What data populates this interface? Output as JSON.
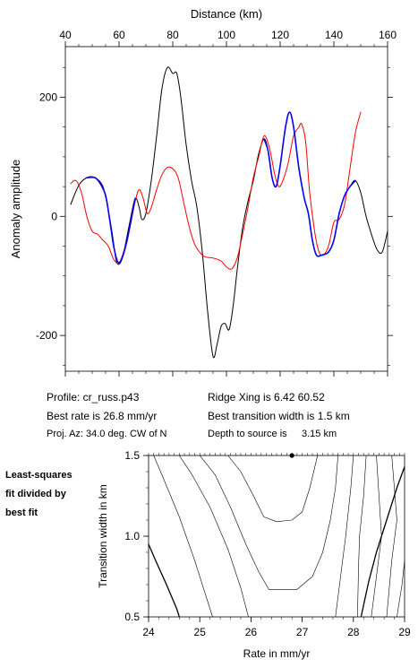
{
  "chart_data": [
    {
      "type": "line",
      "xlabel": "Distance (km)",
      "ylabel": "Anomaly amplitude",
      "xlim": [
        40,
        160
      ],
      "ylim": [
        -260,
        285
      ],
      "xticks": [
        40,
        60,
        80,
        100,
        120,
        140,
        160
      ],
      "yticks": [
        200,
        0,
        -200
      ],
      "series": [
        {
          "color": "#000000",
          "points": [
            [
              42,
              20
            ],
            [
              45,
              52
            ],
            [
              48,
              65
            ],
            [
              51,
              65
            ],
            [
              54,
              50
            ],
            [
              56,
              10
            ],
            [
              57.5,
              -30
            ],
            [
              59,
              -75
            ],
            [
              60.5,
              -78
            ],
            [
              62,
              -55
            ],
            [
              64,
              -10
            ],
            [
              66,
              30
            ],
            [
              67.5,
              15
            ],
            [
              68.5,
              -5
            ],
            [
              70,
              5
            ],
            [
              72,
              60
            ],
            [
              74,
              135
            ],
            [
              76,
              215
            ],
            [
              78,
              250
            ],
            [
              80,
              240
            ],
            [
              81.5,
              240
            ],
            [
              83,
              200
            ],
            [
              85,
              120
            ],
            [
              87,
              60
            ],
            [
              89,
              15
            ],
            [
              91,
              -60
            ],
            [
              93,
              -160
            ],
            [
              95,
              -235
            ],
            [
              96.5,
              -215
            ],
            [
              98,
              -185
            ],
            [
              99.5,
              -180
            ],
            [
              101,
              -190
            ],
            [
              102.5,
              -150
            ],
            [
              104,
              -90
            ],
            [
              106,
              -20
            ],
            [
              108,
              25
            ],
            [
              110,
              60
            ],
            [
              112,
              105
            ],
            [
              114,
              130
            ],
            [
              115.5,
              110
            ],
            [
              117,
              65
            ],
            [
              118.5,
              50
            ],
            [
              120,
              85
            ],
            [
              122,
              150
            ],
            [
              123.5,
              175
            ],
            [
              125,
              150
            ],
            [
              127,
              80
            ],
            [
              129,
              30
            ],
            [
              130.5,
              5
            ],
            [
              132,
              -40
            ],
            [
              133.5,
              -65
            ],
            [
              135.5,
              -65
            ],
            [
              138,
              -60
            ],
            [
              140,
              -40
            ],
            [
              142,
              5
            ],
            [
              144,
              35
            ],
            [
              146,
              50
            ],
            [
              148,
              60
            ],
            [
              150,
              40
            ],
            [
              152,
              0
            ],
            [
              154,
              -30
            ],
            [
              156,
              -55
            ],
            [
              158,
              -60
            ],
            [
              160,
              -25
            ]
          ]
        },
        {
          "color": "#ff0000",
          "points": [
            [
              42,
              55
            ],
            [
              44,
              60
            ],
            [
              46,
              40
            ],
            [
              48,
              0
            ],
            [
              50,
              -25
            ],
            [
              52,
              -30
            ],
            [
              54,
              -40
            ],
            [
              56,
              -50
            ],
            [
              58,
              -72
            ],
            [
              60,
              -78
            ],
            [
              62,
              -55
            ],
            [
              64,
              -20
            ],
            [
              66,
              25
            ],
            [
              67.5,
              45
            ],
            [
              69,
              30
            ],
            [
              70.5,
              5
            ],
            [
              72,
              15
            ],
            [
              74,
              45
            ],
            [
              76,
              70
            ],
            [
              78,
              82
            ],
            [
              80,
              80
            ],
            [
              82,
              65
            ],
            [
              84,
              25
            ],
            [
              86,
              -15
            ],
            [
              88,
              -45
            ],
            [
              90,
              -60
            ],
            [
              92,
              -68
            ],
            [
              95,
              -70
            ],
            [
              98,
              -75
            ],
            [
              100,
              -85
            ],
            [
              102,
              -88
            ],
            [
              104,
              -70
            ],
            [
              106,
              -30
            ],
            [
              108,
              15
            ],
            [
              110,
              65
            ],
            [
              112,
              100
            ],
            [
              114,
              135
            ],
            [
              116,
              115
            ],
            [
              118,
              70
            ],
            [
              119.5,
              50
            ],
            [
              121,
              60
            ],
            [
              123,
              90
            ],
            [
              125,
              135
            ],
            [
              127,
              150
            ],
            [
              128,
              155
            ],
            [
              129.5,
              125
            ],
            [
              131,
              40
            ],
            [
              133,
              -30
            ],
            [
              134.5,
              -60
            ],
            [
              136,
              -65
            ],
            [
              138,
              -50
            ],
            [
              140,
              -10
            ],
            [
              142,
              -5
            ],
            [
              144,
              20
            ],
            [
              146,
              80
            ],
            [
              148,
              140
            ],
            [
              150,
              175
            ]
          ]
        },
        {
          "color": "#0000ff",
          "points": [
            [
              48,
              65
            ],
            [
              51,
              65
            ],
            [
              53,
              55
            ],
            [
              55,
              35
            ],
            [
              56.5,
              -5
            ],
            [
              58,
              -50
            ],
            [
              59.5,
              -76
            ],
            [
              61,
              -72
            ],
            [
              63,
              -40
            ],
            [
              64.5,
              -5
            ],
            [
              66,
              30
            ]
          ]
        },
        {
          "color": "#0000ff",
          "points": [
            [
              114,
              130
            ],
            [
              115.5,
              110
            ],
            [
              117,
              65
            ],
            [
              118.5,
              50
            ],
            [
              120,
              85
            ],
            [
              122,
              150
            ],
            [
              123.5,
              175
            ],
            [
              125,
              150
            ],
            [
              127,
              80
            ],
            [
              129,
              30
            ],
            [
              130.5,
              5
            ],
            [
              132,
              -40
            ],
            [
              133.5,
              -65
            ],
            [
              135.5,
              -65
            ],
            [
              138,
              -60
            ],
            [
              140,
              -40
            ],
            [
              142,
              5
            ],
            [
              144,
              35
            ],
            [
              146,
              50
            ],
            [
              148,
              60
            ]
          ]
        }
      ]
    },
    {
      "type": "line",
      "xlabel": "Rate in mm/yr",
      "ylabel": "Transition width in km",
      "xlim": [
        24,
        29
      ],
      "ylim": [
        0.5,
        1.5
      ],
      "xticks": [
        "24",
        "25",
        "26",
        "27",
        "28",
        "29"
      ],
      "yticks": [
        "1.5",
        "1.0",
        "0.5"
      ],
      "best_fit_marker": [
        26.8,
        1.5
      ],
      "contours": [
        {
          "weight": "thick",
          "points": [
            [
              24,
              0.95
            ],
            [
              24.15,
              0.84
            ],
            [
              24.35,
              0.7
            ],
            [
              24.55,
              0.55
            ],
            [
              24.6,
              0.5
            ]
          ]
        },
        {
          "weight": "thin",
          "points": [
            [
              24.1,
              1.5
            ],
            [
              24.3,
              1.35
            ],
            [
              24.6,
              1.12
            ],
            [
              24.9,
              0.85
            ],
            [
              25.15,
              0.6
            ],
            [
              25.25,
              0.5
            ]
          ]
        },
        {
          "weight": "thin",
          "points": [
            [
              24.6,
              1.5
            ],
            [
              24.85,
              1.38
            ],
            [
              25.2,
              1.18
            ],
            [
              25.55,
              0.92
            ],
            [
              25.8,
              0.68
            ],
            [
              25.95,
              0.5
            ]
          ]
        },
        {
          "weight": "thin",
          "points": [
            [
              25.0,
              1.5
            ],
            [
              25.3,
              1.38
            ],
            [
              25.6,
              1.18
            ],
            [
              25.9,
              0.95
            ],
            [
              26.15,
              0.78
            ],
            [
              26.35,
              0.67
            ],
            [
              26.9,
              0.67
            ],
            [
              27.2,
              0.75
            ],
            [
              27.4,
              0.9
            ],
            [
              27.55,
              1.1
            ],
            [
              27.65,
              1.3
            ],
            [
              27.7,
              1.5
            ]
          ]
        },
        {
          "weight": "thin",
          "points": [
            [
              25.55,
              1.5
            ],
            [
              25.8,
              1.4
            ],
            [
              26.05,
              1.25
            ],
            [
              26.25,
              1.12
            ],
            [
              26.5,
              1.09
            ],
            [
              26.8,
              1.1
            ],
            [
              27.0,
              1.15
            ],
            [
              27.15,
              1.3
            ],
            [
              27.3,
              1.5
            ]
          ]
        },
        {
          "weight": "thin",
          "points": [
            [
              28.0,
              1.5
            ],
            [
              27.95,
              1.3
            ],
            [
              27.85,
              1.0
            ],
            [
              27.75,
              0.75
            ],
            [
              27.65,
              0.5
            ]
          ]
        },
        {
          "weight": "thick",
          "points": [
            [
              28.15,
              0.5
            ],
            [
              28.3,
              0.72
            ],
            [
              28.45,
              0.9
            ],
            [
              28.65,
              1.1
            ],
            [
              28.85,
              1.3
            ],
            [
              29.0,
              1.43
            ]
          ]
        },
        {
          "weight": "thin",
          "points": [
            [
              28.25,
              1.5
            ],
            [
              28.2,
              1.25
            ],
            [
              28.12,
              1.0
            ],
            [
              28.1,
              0.8
            ],
            [
              28.08,
              0.5
            ]
          ]
        },
        {
          "weight": "thin",
          "points": [
            [
              28.45,
              1.5
            ],
            [
              28.5,
              1.25
            ],
            [
              28.55,
              1.0
            ],
            [
              28.45,
              0.75
            ],
            [
              28.35,
              0.5
            ]
          ]
        },
        {
          "weight": "thin",
          "points": [
            [
              28.75,
              1.5
            ],
            [
              28.8,
              1.3
            ],
            [
              28.85,
              1.1
            ],
            [
              28.75,
              0.85
            ],
            [
              28.65,
              0.5
            ]
          ]
        },
        {
          "weight": "thin",
          "points": [
            [
              29.0,
              0.85
            ],
            [
              28.95,
              0.7
            ],
            [
              28.85,
              0.5
            ]
          ]
        }
      ]
    }
  ],
  "info": {
    "profile": "Profile: cr_russ.p43",
    "best_rate": "Best rate is 26.8 mm/yr",
    "proj_az": "Proj. Az: 34.0 deg. CW of N",
    "ridge_xing": "Ridge Xing is 6.42 60.52",
    "best_width": "Best transition width is 1.5 km",
    "depth_label": "Depth to source is",
    "depth_value": "3.15 km"
  },
  "side_label": [
    "Least-squares",
    "fit divided by",
    "best fit"
  ]
}
